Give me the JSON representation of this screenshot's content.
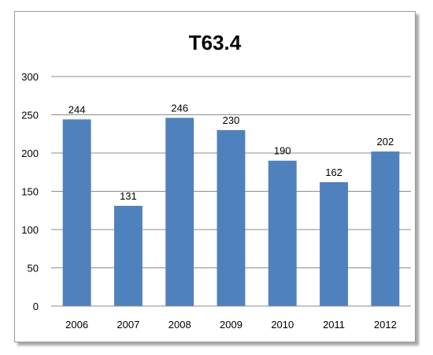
{
  "chart_data": {
    "type": "bar",
    "title": "T63.4",
    "categories": [
      "2006",
      "2007",
      "2008",
      "2009",
      "2010",
      "2011",
      "2012"
    ],
    "values": [
      244,
      131,
      246,
      230,
      190,
      162,
      202
    ],
    "data_labels": [
      "244",
      "131",
      "246",
      "230",
      "190",
      "162",
      "202"
    ],
    "ylim": [
      0,
      300
    ],
    "yticks": [
      "0",
      "50",
      "100",
      "150",
      "200",
      "250",
      "300"
    ],
    "xlabel": "",
    "ylabel": "",
    "grid": true,
    "legend": "none",
    "bar_color": "#4f81bd"
  }
}
